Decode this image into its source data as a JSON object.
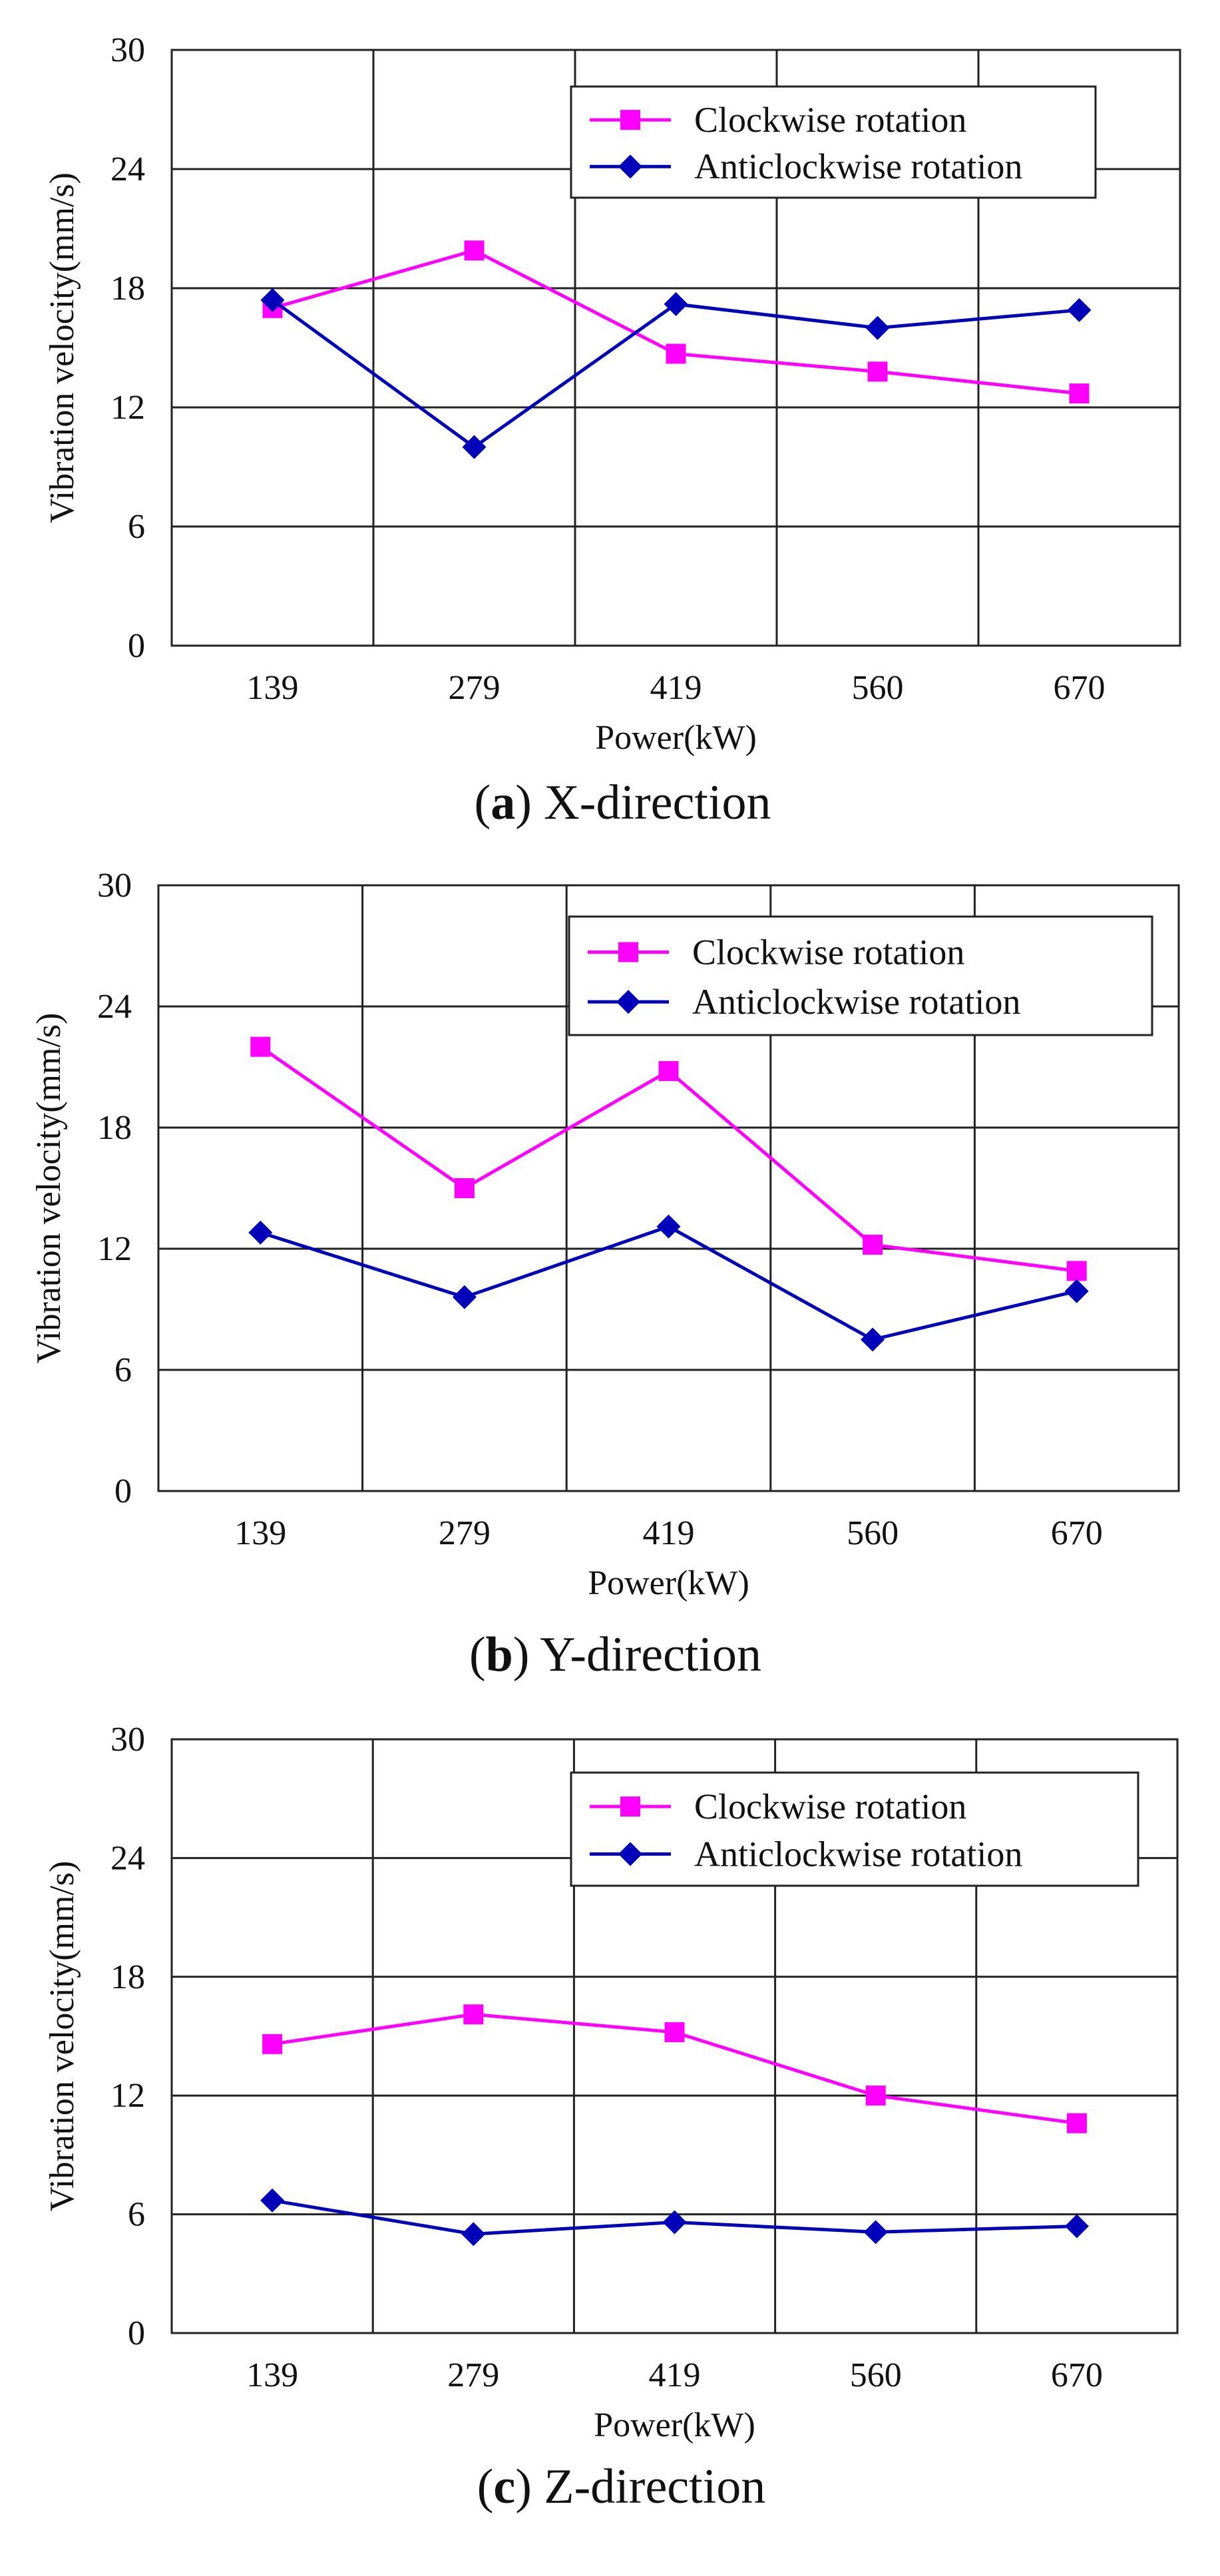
{
  "chart_data": [
    {
      "type": "line",
      "caption": {
        "letter": "a",
        "open": "(",
        "close": ")",
        "text": " X-direction"
      },
      "categories": [
        "139",
        "279",
        "419",
        "560",
        "670"
      ],
      "xlabel": "Power(kW)",
      "ylabel": "Vibration velocity(mm/s)",
      "ylim": [
        0,
        30
      ],
      "yticks": [
        "0",
        "6",
        "12",
        "18",
        "24",
        "30"
      ],
      "grid": true,
      "legend_position": "top-right",
      "series": [
        {
          "name": "Clockwise rotation",
          "color": "#ff00ff",
          "marker": "square",
          "values": [
            17.0,
            19.9,
            14.7,
            13.8,
            12.7
          ]
        },
        {
          "name": "Anticlockwise rotation",
          "color": "#0000bb",
          "marker": "diamond",
          "values": [
            17.4,
            10.0,
            17.2,
            16.0,
            16.9
          ]
        }
      ]
    },
    {
      "type": "line",
      "caption": {
        "letter": "b",
        "open": "(",
        "close": ")",
        "text": " Y-direction"
      },
      "categories": [
        "139",
        "279",
        "419",
        "560",
        "670"
      ],
      "xlabel": "Power(kW)",
      "ylabel": "Vibration velocity(mm/s)",
      "ylim": [
        0,
        30
      ],
      "yticks": [
        "0",
        "6",
        "12",
        "18",
        "24",
        "30"
      ],
      "grid": true,
      "legend_position": "top-right",
      "series": [
        {
          "name": "Clockwise rotation",
          "color": "#ff00ff",
          "marker": "square",
          "values": [
            22.0,
            15.0,
            20.8,
            12.2,
            10.9
          ]
        },
        {
          "name": "Anticlockwise rotation",
          "color": "#0000bb",
          "marker": "diamond",
          "values": [
            12.8,
            9.6,
            13.1,
            7.5,
            9.9
          ]
        }
      ]
    },
    {
      "type": "line",
      "caption": {
        "letter": "c",
        "open": "(",
        "close": ")",
        "text": " Z-direction"
      },
      "categories": [
        "139",
        "279",
        "419",
        "560",
        "670"
      ],
      "xlabel": "Power(kW)",
      "ylabel": "Vibration velocity(mm/s)",
      "ylim": [
        0,
        30
      ],
      "yticks": [
        "0",
        "6",
        "12",
        "18",
        "24",
        "30"
      ],
      "grid": true,
      "legend_position": "top-right",
      "series": [
        {
          "name": "Clockwise rotation",
          "color": "#ff00ff",
          "marker": "square",
          "values": [
            14.6,
            16.1,
            15.2,
            12.0,
            10.6
          ]
        },
        {
          "name": "Anticlockwise rotation",
          "color": "#0000bb",
          "marker": "diamond",
          "values": [
            6.7,
            5.0,
            5.6,
            5.1,
            5.4
          ]
        }
      ]
    }
  ]
}
